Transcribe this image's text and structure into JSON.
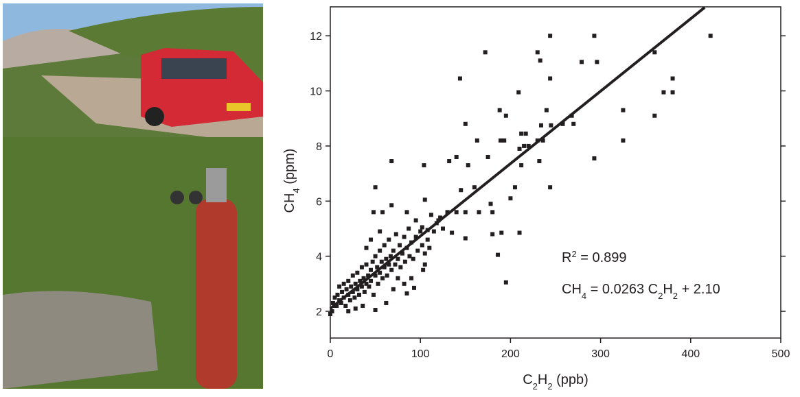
{
  "chart_data": {
    "type": "scatter",
    "x": [
      422,
      293,
      244,
      172,
      230,
      233,
      279,
      296,
      360,
      144,
      244,
      380,
      209,
      370,
      380,
      188,
      240,
      325,
      150,
      195,
      234,
      258,
      268,
      360,
      270,
      245,
      163,
      189,
      193,
      217,
      212,
      230,
      236,
      325,
      210,
      215,
      220,
      175,
      140,
      132,
      68,
      104,
      153,
      212,
      232,
      293,
      145,
      160,
      205,
      244,
      50,
      200,
      178,
      180,
      165,
      105,
      130,
      68,
      58,
      48,
      85,
      140,
      150,
      95,
      150,
      135,
      180,
      210,
      190,
      120,
      102,
      108,
      186,
      195,
      105,
      103,
      93,
      85,
      50,
      20,
      0,
      2,
      5,
      3,
      5,
      7,
      8,
      10,
      10,
      12,
      13,
      15,
      15,
      17,
      18,
      20,
      20,
      22,
      23,
      25,
      25,
      27,
      28,
      30,
      30,
      32,
      33,
      35,
      35,
      37,
      38,
      40,
      40,
      42,
      43,
      45,
      45,
      47,
      48,
      50,
      50,
      52,
      53,
      55,
      55,
      57,
      58,
      60,
      60,
      62,
      63,
      65,
      65,
      67,
      68,
      70,
      72,
      73,
      75,
      77,
      78,
      80,
      82,
      83,
      85,
      87,
      88,
      90,
      92,
      95,
      97,
      100,
      102,
      105,
      108,
      110,
      112,
      115,
      118,
      125,
      122,
      62,
      36,
      28,
      40,
      45,
      55,
      75,
      90,
      70,
      82
    ],
    "values": [
      12,
      12,
      12,
      11.4,
      11.4,
      11.1,
      11.05,
      11.05,
      11.4,
      10.45,
      10.45,
      10.45,
      9.95,
      9.95,
      9.95,
      9.3,
      9.3,
      9.3,
      8.8,
      9.1,
      8.75,
      8.8,
      9.1,
      9.1,
      8.8,
      8.75,
      8.2,
      8.2,
      8.2,
      8.45,
      8.45,
      8.2,
      8.2,
      8.2,
      7.9,
      8.0,
      8.0,
      7.6,
      7.6,
      7.45,
      7.45,
      7.3,
      7.3,
      7.3,
      7.45,
      7.55,
      6.4,
      6.5,
      6.5,
      6.5,
      6.5,
      6.1,
      5.9,
      5.6,
      5.6,
      6.05,
      5.6,
      5.85,
      5.6,
      5.6,
      5.6,
      5.6,
      5.6,
      5.3,
      4.65,
      4.85,
      4.8,
      4.85,
      4.85,
      5.3,
      5.05,
      4.95,
      4.05,
      3.05,
      3.7,
      3.5,
      2.85,
      2.65,
      2.05,
      2.0,
      1.9,
      2.0,
      2.2,
      2.3,
      2.5,
      2.2,
      2.6,
      2.4,
      2.9,
      2.3,
      2.7,
      2.5,
      3.0,
      2.2,
      2.8,
      2.6,
      3.1,
      2.4,
      2.9,
      2.7,
      3.3,
      2.5,
      3.0,
      2.8,
      3.4,
      2.6,
      3.1,
      2.9,
      3.6,
      3.2,
      2.7,
      3.0,
      3.7,
      3.3,
      2.9,
      3.5,
      3.1,
      3.8,
      2.6,
      3.3,
      4.0,
      3.6,
      3.0,
      3.4,
      4.2,
      3.8,
      3.2,
      3.6,
      4.4,
      3.9,
      3.3,
      3.7,
      4.6,
      4.0,
      3.5,
      4.2,
      3.7,
      4.8,
      3.9,
      4.4,
      3.6,
      4.1,
      4.7,
      3.8,
      4.3,
      5.0,
      4.0,
      4.5,
      3.9,
      4.7,
      4.2,
      4.9,
      4.4,
      4.1,
      4.6,
      4.3,
      5.5,
      4.9,
      5.2,
      5.0,
      5.4,
      2.3,
      2.2,
      2.1,
      4.3,
      4.6,
      4.9,
      3.2,
      3.2,
      2.8,
      3.0
    ],
    "color": "#231f20",
    "fit_line": {
      "x": [
        0,
        415.6
      ],
      "values": [
        2.1,
        13.03
      ],
      "color": "#231f20"
    },
    "xlim": [
      0,
      500
    ],
    "xticks": [
      0,
      100,
      200,
      300,
      400,
      500
    ],
    "ylim": [
      1.03,
      13.05
    ],
    "yticks": [
      2,
      4,
      6,
      8,
      10,
      12
    ],
    "xlabel": [
      "C",
      "2",
      "H",
      "2",
      " (ppb)"
    ],
    "ylabel": [
      "CH",
      "4",
      " (ppm)"
    ],
    "annotations": [
      [
        "R",
        "2",
        " = 0.899"
      ],
      [
        "CH",
        "4",
        " = 0.0263 C",
        "2",
        "H",
        "2",
        " + 2.10"
      ]
    ]
  }
}
